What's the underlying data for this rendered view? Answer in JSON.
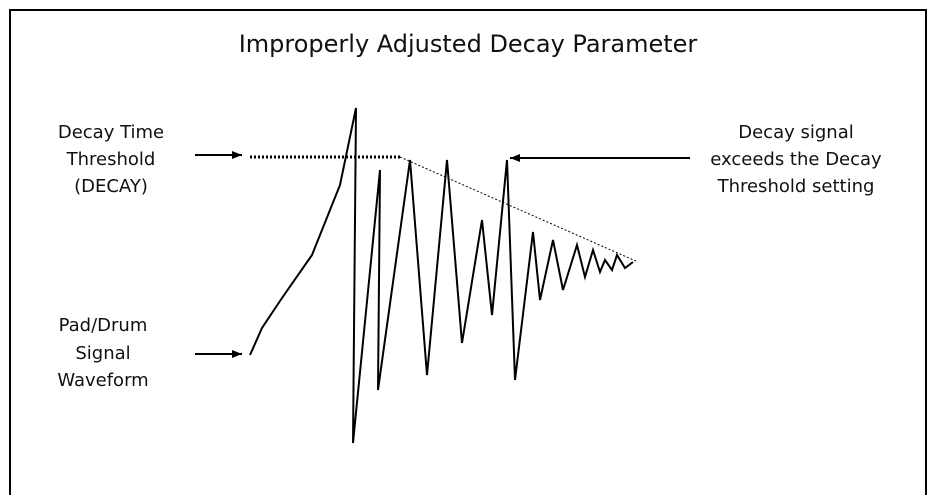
{
  "title": "Improperly Adjusted Decay Parameter",
  "labels": {
    "threshold": [
      "Decay Time",
      "Threshold",
      "(DECAY)"
    ],
    "waveform": [
      "Pad/Drum",
      "Signal",
      "Waveform"
    ],
    "exceeds": [
      "Decay signal",
      "exceeds the Decay",
      "Threshold setting"
    ]
  }
}
